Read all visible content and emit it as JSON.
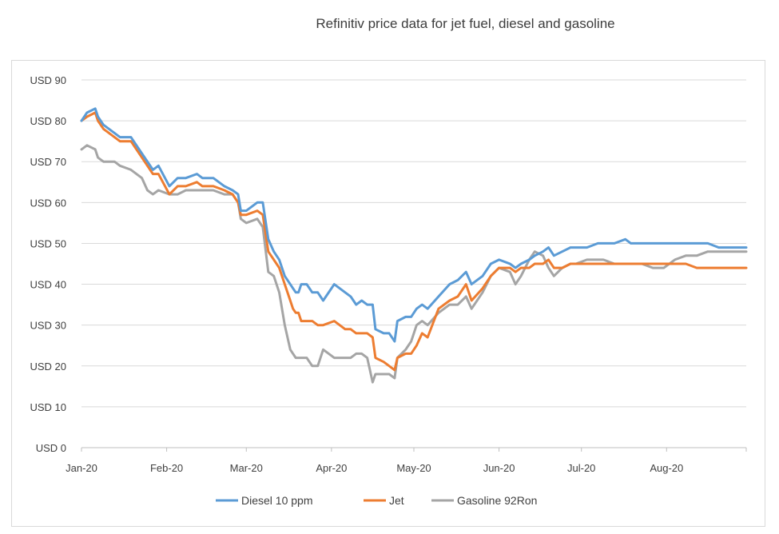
{
  "chart_data": {
    "type": "line",
    "title": "Refinitiv price data for jet fuel, diesel and gasoline",
    "xlabel": "",
    "ylabel": "",
    "ylim": [
      0,
      90
    ],
    "y_ticks": [
      {
        "value": 90,
        "label": "USD 90"
      },
      {
        "value": 80,
        "label": "USD 80"
      },
      {
        "value": 70,
        "label": "USD 70"
      },
      {
        "value": 60,
        "label": "USD 60"
      },
      {
        "value": 50,
        "label": "USD 50"
      },
      {
        "value": 40,
        "label": "USD 40"
      },
      {
        "value": 30,
        "label": "USD 30"
      },
      {
        "value": 20,
        "label": "USD 20"
      },
      {
        "value": 10,
        "label": "USD 10"
      },
      {
        "value": 0,
        "label": "USD 0"
      }
    ],
    "xlim": [
      0,
      242
    ],
    "x_ticks": [
      {
        "value": 0,
        "label": "Jan-20"
      },
      {
        "value": 31,
        "label": "Feb-20"
      },
      {
        "value": 60,
        "label": "Mar-20"
      },
      {
        "value": 91,
        "label": "Apr-20"
      },
      {
        "value": 121,
        "label": "May-20"
      },
      {
        "value": 152,
        "label": "Jun-20"
      },
      {
        "value": 182,
        "label": "Jul-20"
      },
      {
        "value": 213,
        "label": "Aug-20"
      }
    ],
    "grid": true,
    "legend_position": "bottom",
    "series": [
      {
        "name": "Diesel 10 ppm",
        "color": "#5b9bd5",
        "points": [
          [
            0,
            80
          ],
          [
            2,
            82
          ],
          [
            5,
            83
          ],
          [
            6,
            81
          ],
          [
            8,
            79
          ],
          [
            12,
            77
          ],
          [
            14,
            76
          ],
          [
            18,
            76
          ],
          [
            22,
            72
          ],
          [
            26,
            68
          ],
          [
            28,
            69
          ],
          [
            32,
            64
          ],
          [
            35,
            66
          ],
          [
            38,
            66
          ],
          [
            42,
            67
          ],
          [
            44,
            66
          ],
          [
            48,
            66
          ],
          [
            52,
            64
          ],
          [
            55,
            63
          ],
          [
            57,
            62
          ],
          [
            58,
            58
          ],
          [
            60,
            58
          ],
          [
            64,
            60
          ],
          [
            66,
            60
          ],
          [
            68,
            51
          ],
          [
            70,
            48
          ],
          [
            72,
            46
          ],
          [
            74,
            42
          ],
          [
            76,
            40
          ],
          [
            77,
            39
          ],
          [
            78,
            38
          ],
          [
            79,
            38
          ],
          [
            80,
            40
          ],
          [
            82,
            40
          ],
          [
            84,
            38
          ],
          [
            86,
            38
          ],
          [
            88,
            36
          ],
          [
            92,
            40
          ],
          [
            96,
            38
          ],
          [
            98,
            37
          ],
          [
            100,
            35
          ],
          [
            102,
            36
          ],
          [
            104,
            35
          ],
          [
            106,
            35
          ],
          [
            107,
            29
          ],
          [
            110,
            28
          ],
          [
            112,
            28
          ],
          [
            114,
            26
          ],
          [
            115,
            31
          ],
          [
            118,
            32
          ],
          [
            120,
            32
          ],
          [
            122,
            34
          ],
          [
            124,
            35
          ],
          [
            126,
            34
          ],
          [
            130,
            37
          ],
          [
            134,
            40
          ],
          [
            137,
            41
          ],
          [
            140,
            43
          ],
          [
            142,
            40
          ],
          [
            146,
            42
          ],
          [
            149,
            45
          ],
          [
            152,
            46
          ],
          [
            156,
            45
          ],
          [
            158,
            44
          ],
          [
            160,
            45
          ],
          [
            163,
            46
          ],
          [
            165,
            47
          ],
          [
            168,
            48
          ],
          [
            170,
            49
          ],
          [
            172,
            47
          ],
          [
            175,
            48
          ],
          [
            178,
            49
          ],
          [
            180,
            49
          ],
          [
            184,
            49
          ],
          [
            188,
            50
          ],
          [
            190,
            50
          ],
          [
            194,
            50
          ],
          [
            198,
            51
          ],
          [
            200,
            50
          ],
          [
            204,
            50
          ],
          [
            208,
            50
          ],
          [
            212,
            50
          ],
          [
            216,
            50
          ],
          [
            220,
            50
          ],
          [
            224,
            50
          ],
          [
            228,
            50
          ],
          [
            232,
            49
          ],
          [
            236,
            49
          ],
          [
            240,
            49
          ],
          [
            242,
            49
          ]
        ]
      },
      {
        "name": "Jet",
        "color": "#ed7d31",
        "points": [
          [
            0,
            80
          ],
          [
            2,
            81
          ],
          [
            5,
            82
          ],
          [
            6,
            80
          ],
          [
            8,
            78
          ],
          [
            12,
            76
          ],
          [
            14,
            75
          ],
          [
            18,
            75
          ],
          [
            22,
            71
          ],
          [
            26,
            67
          ],
          [
            28,
            67
          ],
          [
            32,
            62
          ],
          [
            35,
            64
          ],
          [
            38,
            64
          ],
          [
            42,
            65
          ],
          [
            44,
            64
          ],
          [
            48,
            64
          ],
          [
            52,
            63
          ],
          [
            55,
            62
          ],
          [
            57,
            60
          ],
          [
            58,
            57
          ],
          [
            60,
            57
          ],
          [
            64,
            58
          ],
          [
            66,
            57
          ],
          [
            68,
            48
          ],
          [
            70,
            46
          ],
          [
            72,
            44
          ],
          [
            74,
            40
          ],
          [
            76,
            36
          ],
          [
            77,
            34
          ],
          [
            78,
            33
          ],
          [
            79,
            33
          ],
          [
            80,
            31
          ],
          [
            82,
            31
          ],
          [
            84,
            31
          ],
          [
            86,
            30
          ],
          [
            88,
            30
          ],
          [
            92,
            31
          ],
          [
            96,
            29
          ],
          [
            98,
            29
          ],
          [
            100,
            28
          ],
          [
            102,
            28
          ],
          [
            104,
            28
          ],
          [
            106,
            27
          ],
          [
            107,
            22
          ],
          [
            110,
            21
          ],
          [
            112,
            20
          ],
          [
            114,
            19
          ],
          [
            115,
            22
          ],
          [
            118,
            23
          ],
          [
            120,
            23
          ],
          [
            122,
            25
          ],
          [
            124,
            28
          ],
          [
            126,
            27
          ],
          [
            130,
            34
          ],
          [
            134,
            36
          ],
          [
            137,
            37
          ],
          [
            140,
            40
          ],
          [
            142,
            36
          ],
          [
            146,
            39
          ],
          [
            149,
            42
          ],
          [
            152,
            44
          ],
          [
            156,
            44
          ],
          [
            158,
            43
          ],
          [
            160,
            44
          ],
          [
            163,
            44
          ],
          [
            165,
            45
          ],
          [
            168,
            45
          ],
          [
            170,
            46
          ],
          [
            172,
            44
          ],
          [
            175,
            44
          ],
          [
            178,
            45
          ],
          [
            180,
            45
          ],
          [
            184,
            45
          ],
          [
            188,
            45
          ],
          [
            190,
            45
          ],
          [
            194,
            45
          ],
          [
            198,
            45
          ],
          [
            200,
            45
          ],
          [
            204,
            45
          ],
          [
            208,
            45
          ],
          [
            212,
            45
          ],
          [
            216,
            45
          ],
          [
            220,
            45
          ],
          [
            224,
            44
          ],
          [
            228,
            44
          ],
          [
            232,
            44
          ],
          [
            236,
            44
          ],
          [
            240,
            44
          ],
          [
            242,
            44
          ]
        ]
      },
      {
        "name": "Gasoline 92Ron",
        "color": "#a5a5a5",
        "points": [
          [
            0,
            73
          ],
          [
            2,
            74
          ],
          [
            5,
            73
          ],
          [
            6,
            71
          ],
          [
            8,
            70
          ],
          [
            12,
            70
          ],
          [
            14,
            69
          ],
          [
            18,
            68
          ],
          [
            22,
            66
          ],
          [
            24,
            63
          ],
          [
            26,
            62
          ],
          [
            28,
            63
          ],
          [
            32,
            62
          ],
          [
            35,
            62
          ],
          [
            38,
            63
          ],
          [
            42,
            63
          ],
          [
            44,
            63
          ],
          [
            48,
            63
          ],
          [
            52,
            62
          ],
          [
            55,
            62
          ],
          [
            57,
            60
          ],
          [
            58,
            56
          ],
          [
            60,
            55
          ],
          [
            64,
            56
          ],
          [
            66,
            54
          ],
          [
            68,
            43
          ],
          [
            70,
            42
          ],
          [
            72,
            38
          ],
          [
            74,
            30
          ],
          [
            76,
            24
          ],
          [
            77,
            23
          ],
          [
            78,
            22
          ],
          [
            79,
            22
          ],
          [
            80,
            22
          ],
          [
            82,
            22
          ],
          [
            84,
            20
          ],
          [
            86,
            20
          ],
          [
            88,
            24
          ],
          [
            92,
            22
          ],
          [
            96,
            22
          ],
          [
            98,
            22
          ],
          [
            100,
            23
          ],
          [
            102,
            23
          ],
          [
            104,
            22
          ],
          [
            106,
            16
          ],
          [
            107,
            18
          ],
          [
            110,
            18
          ],
          [
            112,
            18
          ],
          [
            114,
            17
          ],
          [
            115,
            22
          ],
          [
            118,
            24
          ],
          [
            120,
            26
          ],
          [
            122,
            30
          ],
          [
            124,
            31
          ],
          [
            126,
            30
          ],
          [
            130,
            33
          ],
          [
            134,
            35
          ],
          [
            137,
            35
          ],
          [
            140,
            37
          ],
          [
            142,
            34
          ],
          [
            146,
            38
          ],
          [
            149,
            42
          ],
          [
            152,
            44
          ],
          [
            156,
            43
          ],
          [
            158,
            40
          ],
          [
            160,
            42
          ],
          [
            163,
            46
          ],
          [
            165,
            48
          ],
          [
            168,
            47
          ],
          [
            170,
            44
          ],
          [
            172,
            42
          ],
          [
            175,
            44
          ],
          [
            178,
            45
          ],
          [
            180,
            45
          ],
          [
            184,
            46
          ],
          [
            188,
            46
          ],
          [
            190,
            46
          ],
          [
            194,
            45
          ],
          [
            198,
            45
          ],
          [
            200,
            45
          ],
          [
            204,
            45
          ],
          [
            208,
            44
          ],
          [
            212,
            44
          ],
          [
            216,
            46
          ],
          [
            220,
            47
          ],
          [
            224,
            47
          ],
          [
            228,
            48
          ],
          [
            232,
            48
          ],
          [
            236,
            48
          ],
          [
            240,
            48
          ],
          [
            242,
            48
          ]
        ]
      }
    ]
  }
}
